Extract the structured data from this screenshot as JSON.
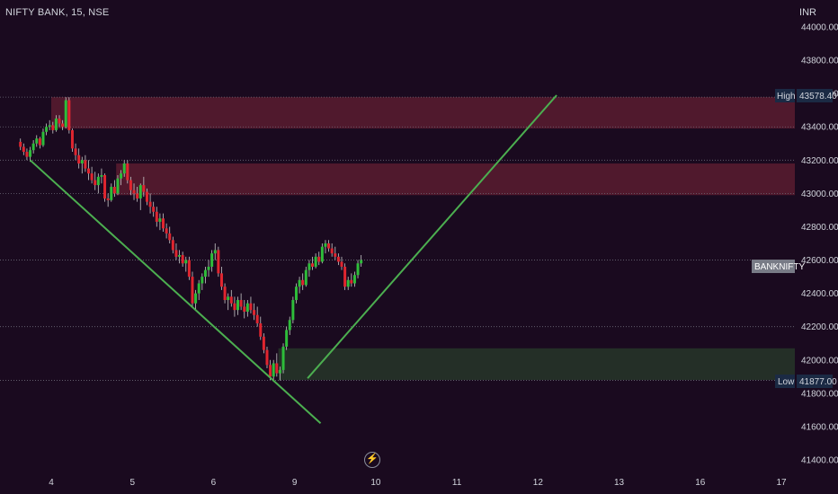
{
  "header": {
    "symbol_line": "NIFTY BANK, 15, NSE",
    "currency": "INR"
  },
  "badges": {
    "high_label": "High",
    "high_value": "43578.40",
    "low_label": "Low",
    "low_value": "41877.00",
    "symbol_label": "BANKNIFTY"
  },
  "colors": {
    "background": "#1a0a1f",
    "bull": "#2ebd3a",
    "bear": "#e0252f",
    "supply_zone": "#5a1c30",
    "demand_zone": "#263328",
    "trendline": "#4caf50",
    "badge_bg": "#1b2a44",
    "symbol_badge_bg": "#787b86"
  },
  "icons": {
    "replay": "flash-icon"
  },
  "chart_data": {
    "type": "candlestick",
    "title": "NIFTY BANK, 15, NSE",
    "ylabel": "INR",
    "ylim": [
      41350,
      44050
    ],
    "xlim": [
      3.6,
      17.2
    ],
    "y_ticks": [
      "44000.00",
      "43800.00",
      "43600.00",
      "43400.00",
      "43200.00",
      "43000.00",
      "42800.00",
      "42600.00",
      "42400.00",
      "42200.00",
      "42000.00",
      "41800.00",
      "41600.00",
      "41400.00"
    ],
    "x_ticks": [
      {
        "label": "4",
        "pos": 4
      },
      {
        "label": "5",
        "pos": 5
      },
      {
        "label": "6",
        "pos": 6
      },
      {
        "label": "9",
        "pos": 7
      },
      {
        "label": "10",
        "pos": 8
      },
      {
        "label": "11",
        "pos": 9
      },
      {
        "label": "12",
        "pos": 10
      },
      {
        "label": "13",
        "pos": 11
      },
      {
        "label": "16",
        "pos": 12
      },
      {
        "label": "17",
        "pos": 13
      }
    ],
    "grid": false,
    "high": 43578.4,
    "low": 41877.0,
    "last": 42600,
    "dotted_levels": [
      43578.4,
      43400,
      43200,
      43000,
      42600,
      42200,
      41877
    ],
    "zones": [
      {
        "kind": "supply",
        "from": 43390,
        "to": 43578.4,
        "x_start": 4.0
      },
      {
        "kind": "supply",
        "from": 42990,
        "to": 43180,
        "x_start": 4.8
      },
      {
        "kind": "demand",
        "from": 41880,
        "to": 42070,
        "x_start": 6.8
      }
    ],
    "trendlines": [
      {
        "x1": 3.74,
        "y1": 43200,
        "x2": 7.32,
        "y2": 41620
      },
      {
        "x1": 7.16,
        "y1": 41890,
        "x2": 10.23,
        "y2": 43590
      }
    ],
    "candles": [
      [
        3.62,
        43310,
        43330,
        43260,
        43280
      ],
      [
        3.66,
        43280,
        43300,
        43230,
        43250
      ],
      [
        3.7,
        43250,
        43270,
        43200,
        43220
      ],
      [
        3.74,
        43220,
        43280,
        43190,
        43260
      ],
      [
        3.78,
        43260,
        43320,
        43240,
        43300
      ],
      [
        3.82,
        43300,
        43350,
        43280,
        43330
      ],
      [
        3.86,
        43330,
        43340,
        43270,
        43290
      ],
      [
        3.9,
        43290,
        43390,
        43280,
        43370
      ],
      [
        3.94,
        43370,
        43420,
        43350,
        43400
      ],
      [
        3.98,
        43400,
        43440,
        43380,
        43410
      ],
      [
        4.02,
        43410,
        43430,
        43360,
        43380
      ],
      [
        4.06,
        43380,
        43470,
        43370,
        43450
      ],
      [
        4.1,
        43450,
        43470,
        43400,
        43420
      ],
      [
        4.14,
        43420,
        43440,
        43380,
        43400
      ],
      [
        4.18,
        43400,
        43578,
        43390,
        43560
      ],
      [
        4.22,
        43560,
        43578,
        43360,
        43380
      ],
      [
        4.26,
        43380,
        43390,
        43250,
        43270
      ],
      [
        4.3,
        43270,
        43300,
        43200,
        43230
      ],
      [
        4.34,
        43230,
        43270,
        43150,
        43180
      ],
      [
        4.38,
        43180,
        43220,
        43120,
        43200
      ],
      [
        4.42,
        43200,
        43230,
        43130,
        43150
      ],
      [
        4.46,
        43150,
        43200,
        43080,
        43120
      ],
      [
        4.5,
        43120,
        43160,
        43060,
        43080
      ],
      [
        4.54,
        43080,
        43130,
        43020,
        43050
      ],
      [
        4.58,
        43050,
        43120,
        43000,
        43100
      ],
      [
        4.62,
        43100,
        43150,
        43060,
        43110
      ],
      [
        4.66,
        43110,
        43120,
        42950,
        42970
      ],
      [
        4.7,
        42970,
        43000,
        42920,
        42960
      ],
      [
        4.74,
        42960,
        43060,
        42950,
        43040
      ],
      [
        4.78,
        43040,
        43080,
        42980,
        43000
      ],
      [
        4.82,
        43000,
        43110,
        42990,
        43090
      ],
      [
        4.86,
        43090,
        43140,
        43050,
        43120
      ],
      [
        4.9,
        43120,
        43200,
        43100,
        43180
      ],
      [
        4.94,
        43180,
        43200,
        43060,
        43080
      ],
      [
        4.98,
        43080,
        43100,
        42990,
        43020
      ],
      [
        5.02,
        43020,
        43060,
        42960,
        43000
      ],
      [
        5.06,
        43000,
        43040,
        42950,
        42970
      ],
      [
        5.1,
        42970,
        43060,
        42900,
        43050
      ],
      [
        5.14,
        43050,
        43100,
        42980,
        43010
      ],
      [
        5.18,
        43010,
        43030,
        42930,
        42950
      ],
      [
        5.22,
        42950,
        43000,
        42880,
        42920
      ],
      [
        5.26,
        42920,
        42950,
        42860,
        42890
      ],
      [
        5.3,
        42890,
        42920,
        42800,
        42830
      ],
      [
        5.34,
        42830,
        42880,
        42780,
        42850
      ],
      [
        5.38,
        42850,
        42880,
        42770,
        42790
      ],
      [
        5.42,
        42790,
        42820,
        42730,
        42760
      ],
      [
        5.46,
        42760,
        42800,
        42700,
        42720
      ],
      [
        5.5,
        42720,
        42740,
        42640,
        42660
      ],
      [
        5.54,
        42660,
        42700,
        42600,
        42620
      ],
      [
        5.58,
        42620,
        42660,
        42580,
        42630
      ],
      [
        5.62,
        42630,
        42650,
        42560,
        42580
      ],
      [
        5.66,
        42580,
        42620,
        42530,
        42600
      ],
      [
        5.7,
        42600,
        42620,
        42480,
        42500
      ],
      [
        5.74,
        42500,
        42530,
        42320,
        42340
      ],
      [
        5.78,
        42340,
        42420,
        42300,
        42400
      ],
      [
        5.82,
        42400,
        42480,
        42360,
        42460
      ],
      [
        5.86,
        42460,
        42520,
        42420,
        42500
      ],
      [
        5.9,
        42500,
        42560,
        42460,
        42540
      ],
      [
        5.94,
        42540,
        42600,
        42500,
        42560
      ],
      [
        5.98,
        42560,
        42660,
        42530,
        42640
      ],
      [
        6.02,
        42640,
        42700,
        42600,
        42660
      ],
      [
        6.06,
        42660,
        42680,
        42500,
        42520
      ],
      [
        6.1,
        42520,
        42560,
        42420,
        42440
      ],
      [
        6.14,
        42440,
        42460,
        42340,
        42360
      ],
      [
        6.18,
        42360,
        42400,
        42300,
        42380
      ],
      [
        6.22,
        42380,
        42420,
        42320,
        42340
      ],
      [
        6.26,
        42340,
        42380,
        42260,
        42300
      ],
      [
        6.3,
        42300,
        42380,
        42270,
        42360
      ],
      [
        6.34,
        42360,
        42400,
        42300,
        42320
      ],
      [
        6.38,
        42320,
        42360,
        42250,
        42290
      ],
      [
        6.42,
        42290,
        42360,
        42260,
        42340
      ],
      [
        6.46,
        42340,
        42380,
        42280,
        42300
      ],
      [
        6.5,
        42300,
        42340,
        42240,
        42270
      ],
      [
        6.54,
        42270,
        42320,
        42200,
        42220
      ],
      [
        6.58,
        42220,
        42260,
        42120,
        42140
      ],
      [
        6.62,
        42140,
        42160,
        42040,
        42060
      ],
      [
        6.66,
        42060,
        42080,
        41950,
        41970
      ],
      [
        6.7,
        41970,
        42000,
        41880,
        41900
      ],
      [
        6.74,
        41900,
        42000,
        41877,
        41980
      ],
      [
        6.78,
        41980,
        42040,
        41900,
        41920
      ],
      [
        6.82,
        41920,
        41960,
        41877,
        41940
      ],
      [
        6.86,
        41940,
        42100,
        41920,
        42080
      ],
      [
        6.9,
        42080,
        42200,
        42060,
        42180
      ],
      [
        6.94,
        42180,
        42260,
        42150,
        42240
      ],
      [
        6.98,
        42240,
        42380,
        42220,
        42360
      ],
      [
        7.02,
        42360,
        42460,
        42340,
        42440
      ],
      [
        7.06,
        42440,
        42500,
        42400,
        42480
      ],
      [
        7.1,
        42480,
        42520,
        42420,
        42450
      ],
      [
        7.14,
        42450,
        42560,
        42440,
        42540
      ],
      [
        7.18,
        42540,
        42600,
        42500,
        42580
      ],
      [
        7.22,
        42580,
        42620,
        42540,
        42560
      ],
      [
        7.26,
        42560,
        42640,
        42550,
        42620
      ],
      [
        7.3,
        42620,
        42650,
        42570,
        42590
      ],
      [
        7.34,
        42590,
        42700,
        42580,
        42680
      ],
      [
        7.38,
        42680,
        42720,
        42640,
        42700
      ],
      [
        7.42,
        42700,
        42720,
        42650,
        42670
      ],
      [
        7.46,
        42670,
        42700,
        42620,
        42640
      ],
      [
        7.5,
        42640,
        42680,
        42600,
        42620
      ],
      [
        7.54,
        42620,
        42640,
        42570,
        42590
      ],
      [
        7.58,
        42590,
        42620,
        42540,
        42560
      ],
      [
        7.62,
        42560,
        42580,
        42420,
        42440
      ],
      [
        7.66,
        42440,
        42500,
        42420,
        42480
      ],
      [
        7.7,
        42480,
        42520,
        42440,
        42460
      ],
      [
        7.74,
        42460,
        42530,
        42440,
        42510
      ],
      [
        7.78,
        42510,
        42600,
        42490,
        42580
      ],
      [
        7.82,
        42580,
        42630,
        42560,
        42600
      ]
    ]
  }
}
